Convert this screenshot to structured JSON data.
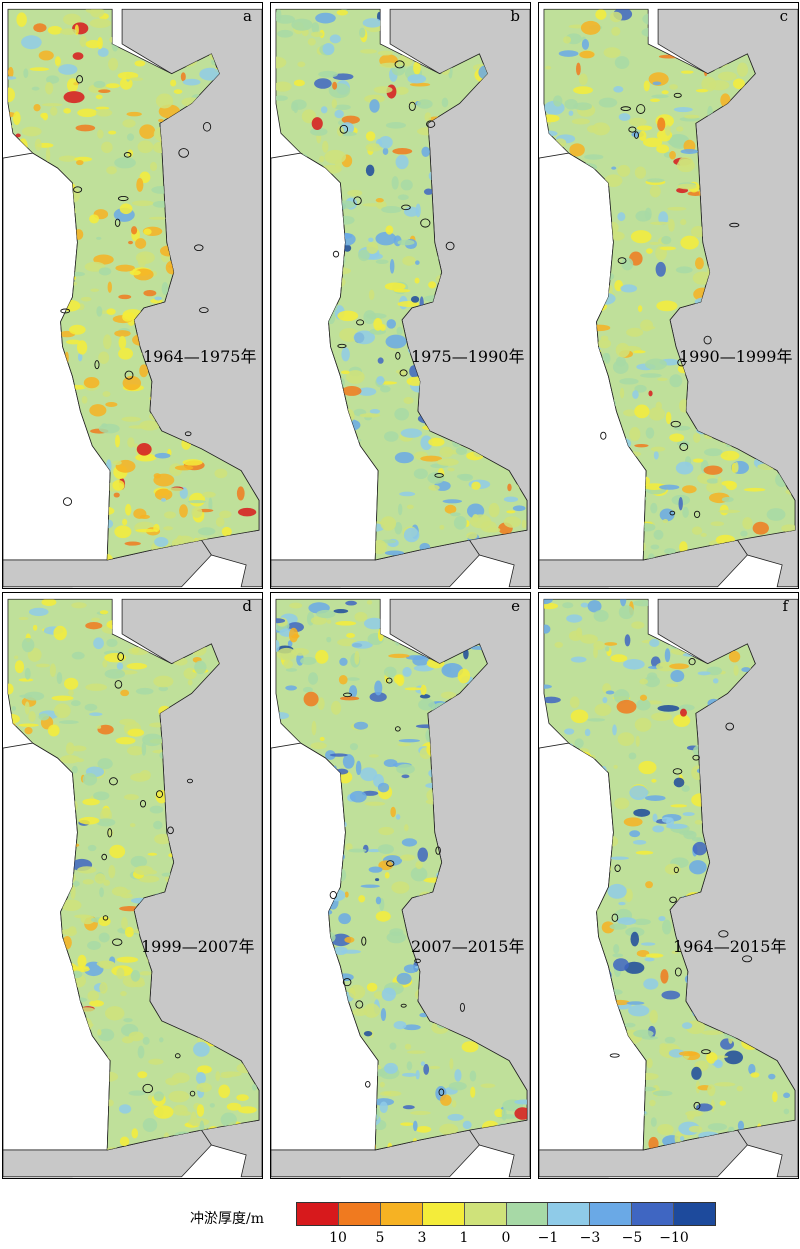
{
  "panels": [
    {
      "letter": "a",
      "period": "1964—1975年",
      "tone": "deposit"
    },
    {
      "letter": "b",
      "period": "1975—1990年",
      "tone": "erosion"
    },
    {
      "letter": "c",
      "period": "1990—1999年",
      "tone": "mixed"
    },
    {
      "letter": "d",
      "period": "1999—2007年",
      "tone": "mild"
    },
    {
      "letter": "e",
      "period": "2007—2015年",
      "tone": "strong-erosion"
    },
    {
      "letter": "f",
      "period": "1964—2015年",
      "tone": "strong-erosion"
    }
  ],
  "legend": {
    "title": "冲淤厚度/m",
    "colors": [
      "#d7191c",
      "#f07a1f",
      "#f6b223",
      "#f4ec3a",
      "#cfe27a",
      "#a7d9a6",
      "#8fcbe8",
      "#6aa9e6",
      "#3f66c2",
      "#1d4a9c"
    ],
    "ticks": [
      "10",
      "5",
      "3",
      "1",
      "0",
      "−1",
      "−3",
      "−5",
      "−10"
    ]
  },
  "colors": {
    "land": "#c8c8c8",
    "water_base": "#bfe09a"
  }
}
